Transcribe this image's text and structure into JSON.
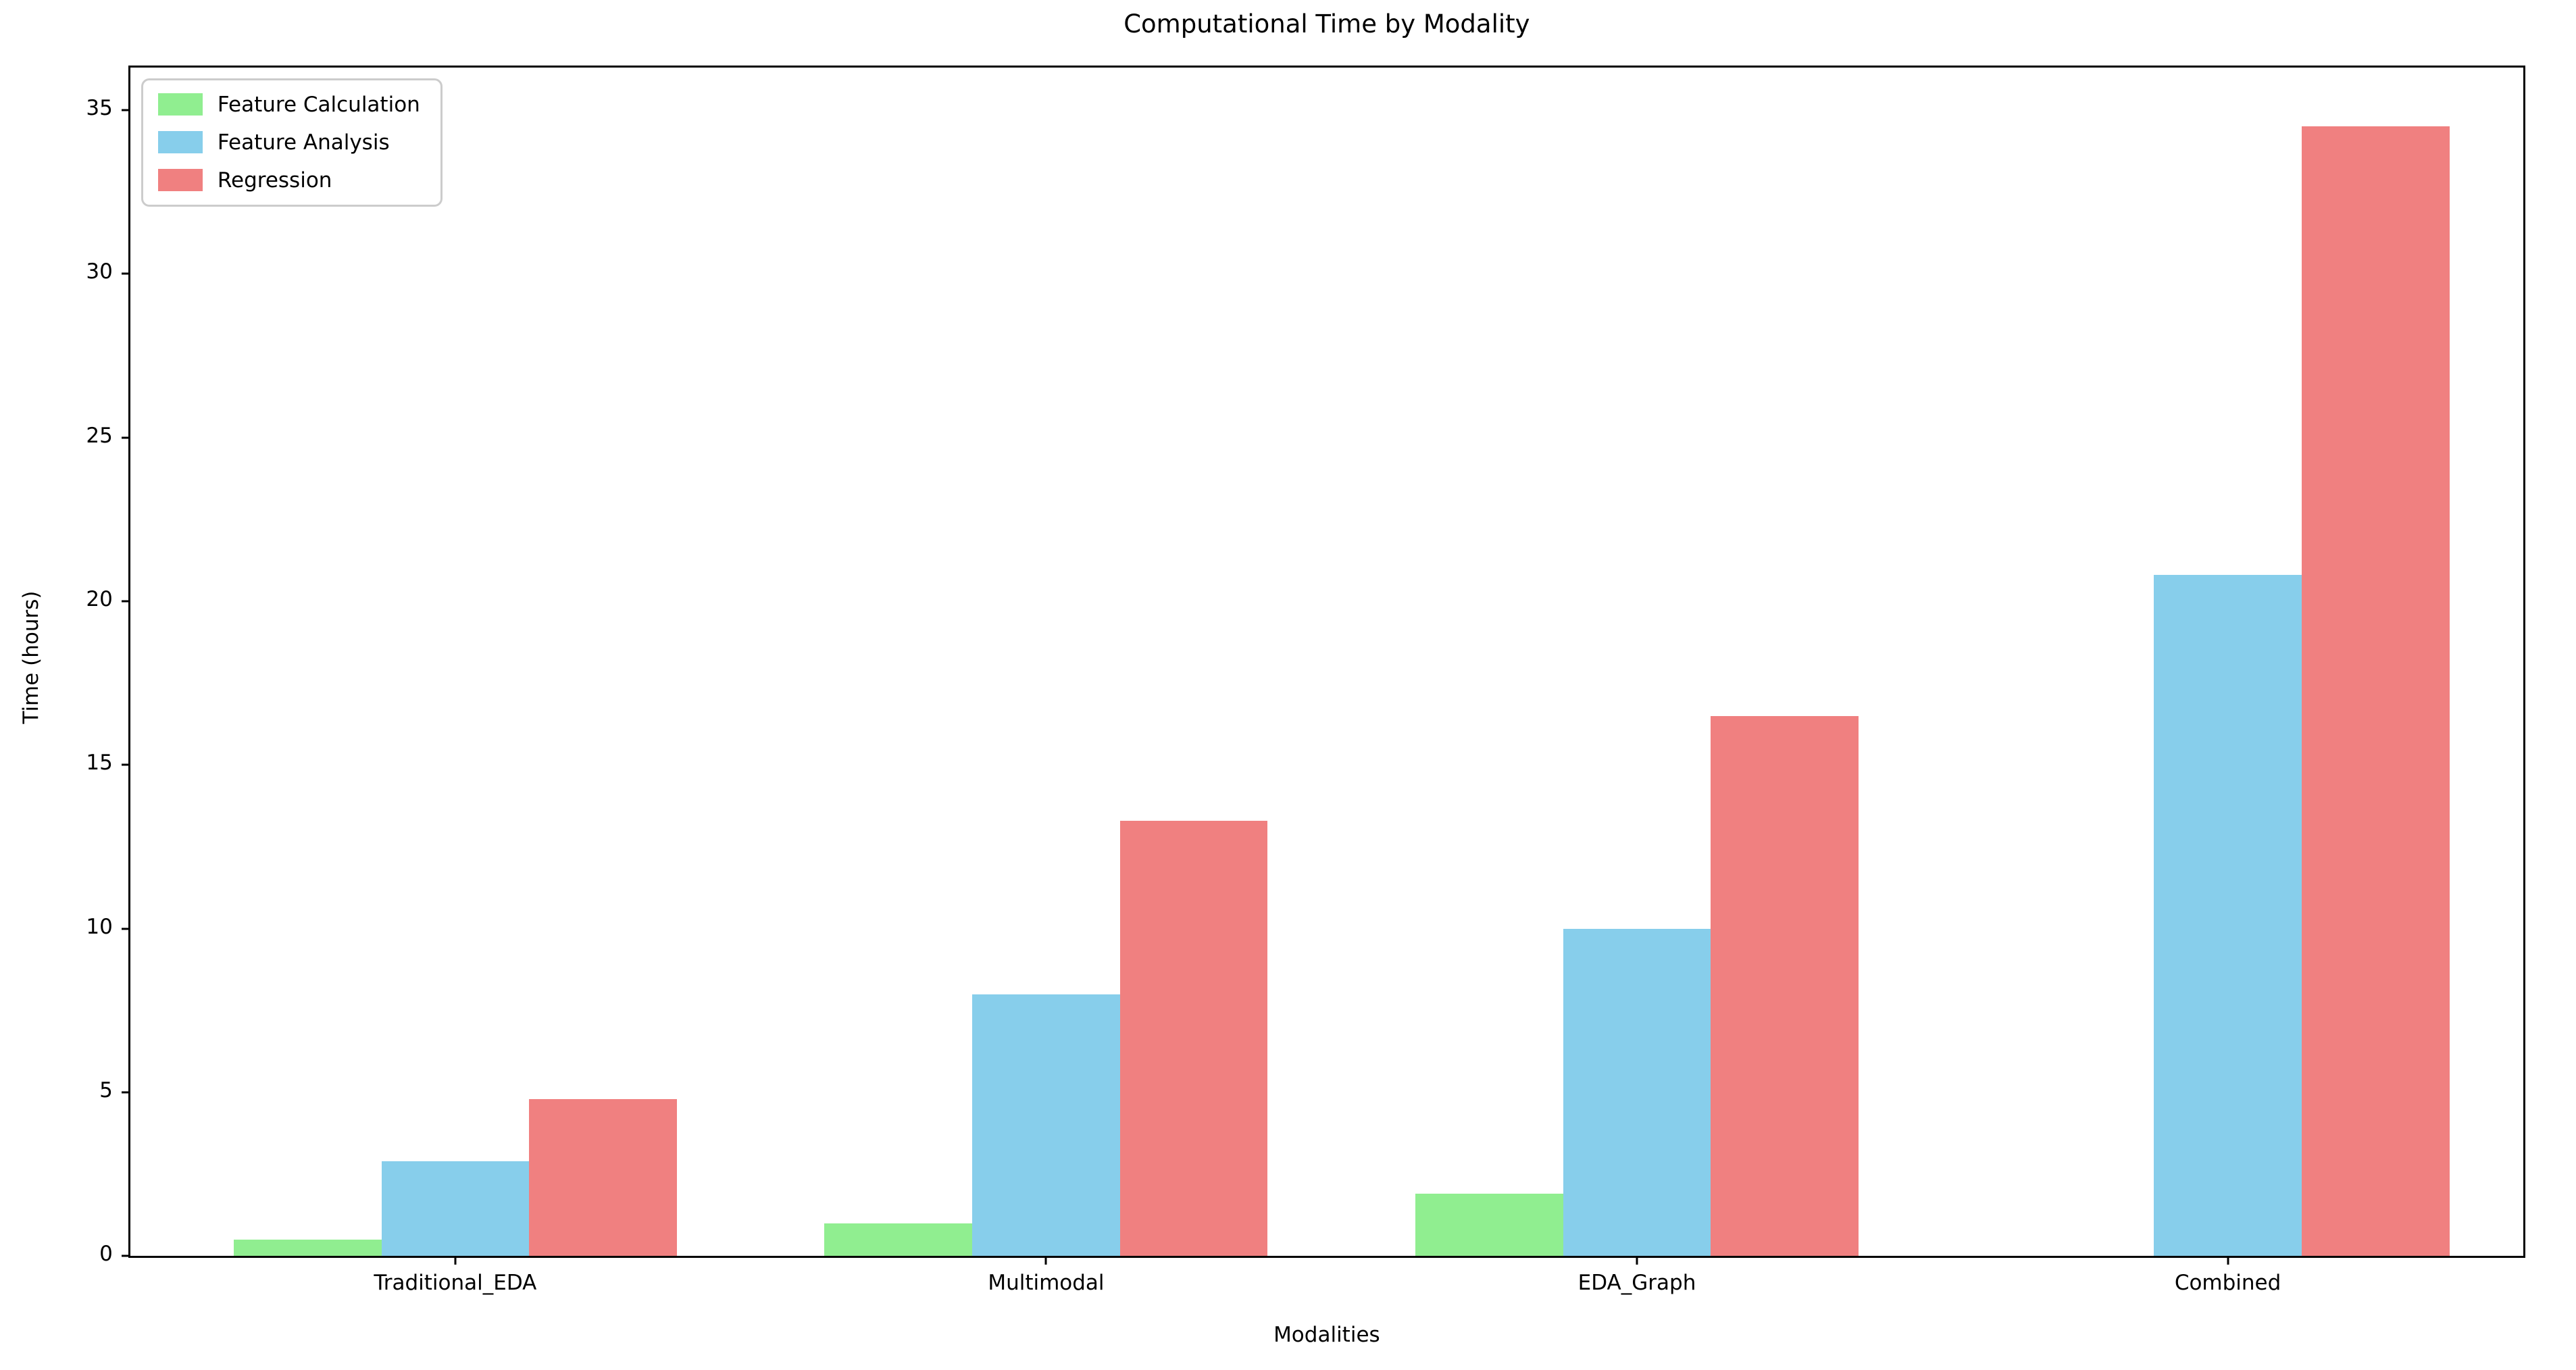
{
  "chart_data": {
    "type": "bar",
    "title": "Computational Time by Modality",
    "xlabel": "Modalities",
    "ylabel": "Time (hours)",
    "categories": [
      "Traditional_EDA",
      "Multimodal",
      "EDA_Graph",
      "Combined"
    ],
    "series": [
      {
        "name": "Feature Calculation",
        "color": "#90EE90",
        "values": [
          0.5,
          1.0,
          1.9,
          0
        ]
      },
      {
        "name": "Feature Analysis",
        "color": "#87CEEB",
        "values": [
          2.9,
          8.0,
          10.0,
          20.8
        ]
      },
      {
        "name": "Regression",
        "color": "#F08080",
        "values": [
          4.8,
          13.3,
          16.5,
          34.5
        ]
      }
    ],
    "yticks": [
      0,
      5,
      10,
      15,
      20,
      25,
      30,
      35
    ],
    "ylim": [
      0,
      36.3
    ],
    "xlim": [
      -0.55,
      3.5
    ],
    "bar_width": 0.25,
    "group_offsets": [
      -0.25,
      0,
      0.25
    ],
    "legend_position": "upper left",
    "grid": false,
    "background_color": "#FFFFFF",
    "spine_color": "#000000"
  }
}
